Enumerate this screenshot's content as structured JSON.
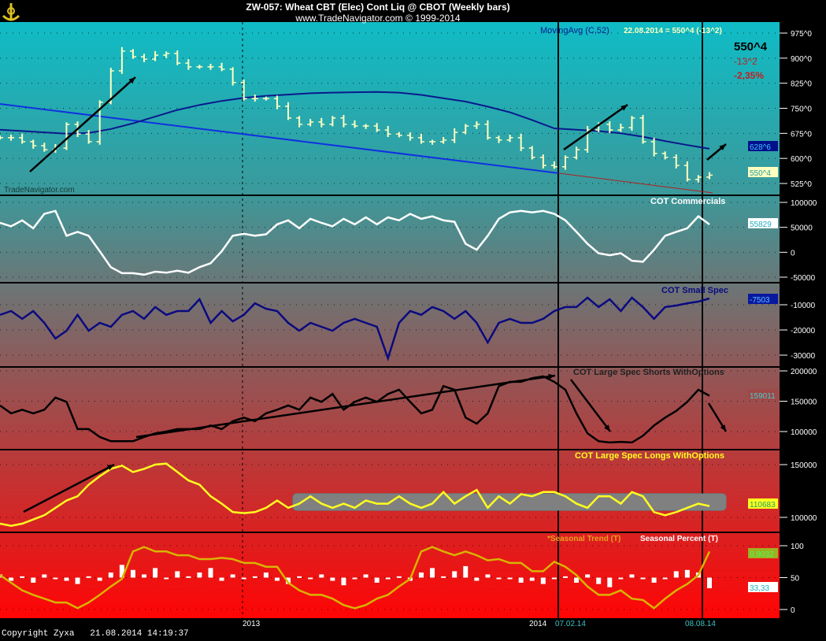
{
  "header": {
    "title": "ZW-057:  Wheat CBT (Elec) Cont Liq @ CBOT  (Weekly bars)",
    "subtitle": "www.TradeNavigator.com © 1999-2014"
  },
  "footer": {
    "copyright": "Copyright Zyxa",
    "timestamp": "21.08.2014 14:19:37"
  },
  "colors": {
    "ma": "#0a1a8c",
    "trend": "#1030e0",
    "red_line": "#b02020",
    "commercials": "#ffffff",
    "small_spec": "#0a0a80",
    "shorts": "#000000",
    "longs": "#ffff20",
    "seasonal_trend": "#d8b400",
    "seasonal_pct": "#ffffff",
    "price_bars": "#ffffc0"
  },
  "chart_data": [
    {
      "type": "bar",
      "subtype": "ohlc",
      "label": "MovingAvg (C,52)",
      "info": "22.08.2014 = 550^4 (-13^2)",
      "watermark": "TradeNavigator.com",
      "last_price": "550^4",
      "change": "-13^2",
      "change_pct": "-2,35%",
      "ma_value_label": "628^6",
      "price_value_label": "550^4",
      "y_ticks": [
        "975^0",
        "900^0",
        "825^0",
        "750^0",
        "675^0",
        "600^0",
        "525^0"
      ],
      "y_tick_values": [
        975,
        900,
        825,
        750,
        675,
        600,
        525
      ],
      "ylim": [
        490,
        1005
      ],
      "closes": [
        662,
        662,
        650,
        638,
        626,
        631,
        702,
        673,
        650,
        768,
        862,
        921,
        904,
        897,
        909,
        914,
        885,
        874,
        874,
        874,
        867,
        827,
        779,
        779,
        779,
        756,
        721,
        702,
        709,
        702,
        721,
        702,
        697,
        697,
        685,
        673,
        669,
        662,
        650,
        650,
        655,
        678,
        697,
        702,
        662,
        655,
        662,
        631,
        603,
        579,
        575,
        603,
        626,
        685,
        702,
        685,
        692,
        721,
        650,
        615,
        603,
        579,
        537,
        544,
        550
      ],
      "moving_avg_52": [
        686,
        682,
        678,
        674,
        676,
        688,
        705,
        725,
        745,
        760,
        772,
        781,
        787,
        791,
        795,
        797,
        798,
        799,
        797,
        790,
        780,
        770,
        755,
        738,
        715,
        690,
        686,
        682,
        675,
        665,
        652,
        640,
        629
      ],
      "trendline": [
        763,
        556
      ],
      "trendline_extension": [
        556,
        497
      ]
    },
    {
      "type": "line",
      "label": "COT Commercials",
      "value_label": "55829",
      "y_ticks": [
        "100000",
        "50000",
        "0",
        "-50000"
      ],
      "y_tick_values": [
        100000,
        50000,
        0,
        -50000
      ],
      "values": [
        59000,
        52000,
        64000,
        48000,
        77000,
        83000,
        33000,
        41000,
        33000,
        2000,
        -30000,
        -42000,
        -42000,
        -45000,
        -39000,
        -41000,
        -37000,
        -41000,
        -30000,
        -22000,
        2000,
        33000,
        37000,
        33000,
        36000,
        56000,
        64000,
        48000,
        67000,
        59000,
        52000,
        67000,
        56000,
        70000,
        56000,
        70000,
        64000,
        77000,
        67000,
        72000,
        64000,
        61000,
        17000,
        5000,
        33000,
        67000,
        80000,
        83000,
        80000,
        83000,
        77000,
        64000,
        41000,
        17000,
        -2000,
        -6000,
        -2000,
        -17000,
        -19000,
        5000,
        33000,
        41000,
        48000,
        72000,
        55829
      ]
    },
    {
      "type": "line",
      "label": "COT Small Spec",
      "value_label": "-7503",
      "y_ticks": [
        "-10000",
        "-20000",
        "-30000"
      ],
      "y_tick_values": [
        -10000,
        -20000,
        -30000
      ],
      "values": [
        -14000,
        -12500,
        -15600,
        -12500,
        -17200,
        -23400,
        -20300,
        -14000,
        -20300,
        -17200,
        -18750,
        -14000,
        -12500,
        -15600,
        -10900,
        -14000,
        -12500,
        -12500,
        -7800,
        -17200,
        -12500,
        -16600,
        -14000,
        -9400,
        -11600,
        -12500,
        -17200,
        -20300,
        -17200,
        -18750,
        -20300,
        -17200,
        -15600,
        -17200,
        -18750,
        -31250,
        -17200,
        -12500,
        -14000,
        -10900,
        -12500,
        -15600,
        -12500,
        -17200,
        -25000,
        -17200,
        -15600,
        -17200,
        -17200,
        -15600,
        -12500,
        -10900,
        -10900,
        -7200,
        -10900,
        -7800,
        -12500,
        -7200,
        -10900,
        -15600,
        -10900,
        -10300,
        -9400,
        -8750,
        -7503
      ]
    },
    {
      "type": "line",
      "label": "COT Large Spec Shorts WithOptions",
      "value_label": "159011",
      "y_ticks": [
        "200000",
        "150000",
        "100000"
      ],
      "y_tick_values": [
        200000,
        150000,
        100000
      ],
      "values": [
        143000,
        130000,
        136000,
        130000,
        136000,
        156000,
        149000,
        104000,
        104000,
        91000,
        84000,
        84000,
        84000,
        91000,
        97000,
        100000,
        104000,
        104000,
        104000,
        110000,
        104000,
        117000,
        123000,
        117000,
        130000,
        136000,
        143000,
        136000,
        156000,
        149000,
        162000,
        136000,
        149000,
        156000,
        149000,
        162000,
        169000,
        149000,
        130000,
        136000,
        175000,
        169000,
        123000,
        113000,
        130000,
        175000,
        182000,
        182000,
        188000,
        191000,
        182000,
        169000,
        130000,
        97000,
        84000,
        82000,
        83000,
        82000,
        93000,
        110000,
        123000,
        134000,
        149000,
        169000,
        159011
      ]
    },
    {
      "type": "line",
      "label": "COT Large Spec Longs WithOptions",
      "value_label": "110683",
      "y_ticks": [
        "150000",
        "100000"
      ],
      "y_tick_values": [
        150000,
        100000
      ],
      "values": [
        94000,
        92000,
        94000,
        98000,
        102000,
        109000,
        116000,
        120000,
        131000,
        139000,
        146000,
        149000,
        143000,
        146000,
        150000,
        151000,
        143000,
        135000,
        131000,
        120000,
        113000,
        105000,
        104000,
        105000,
        109000,
        116000,
        109000,
        113000,
        120000,
        113000,
        109000,
        113000,
        109000,
        116000,
        113000,
        113000,
        120000,
        113000,
        109000,
        113000,
        124000,
        113000,
        120000,
        126000,
        109000,
        120000,
        113000,
        122000,
        120000,
        124000,
        124000,
        120000,
        113000,
        109000,
        120000,
        120000,
        113000,
        124000,
        120000,
        105000,
        102000,
        105000,
        109000,
        113000,
        110683
      ]
    },
    {
      "type": "bar+line",
      "label_trend": "*Seasonal Trend (T)",
      "label_pct": "Seasonal Percent (T)",
      "trend_value_label": "0,9032",
      "pct_value_label": "33,33",
      "y_ticks": [
        "100",
        "50",
        "0"
      ],
      "y_tick_values": [
        100,
        50,
        0
      ],
      "seasonal_trend": [
        54,
        42,
        30,
        23,
        17,
        11,
        11,
        2,
        11,
        23,
        36,
        48,
        91,
        98,
        91,
        91,
        85,
        85,
        79,
        79,
        81,
        79,
        73,
        73,
        67,
        67,
        42,
        30,
        23,
        23,
        17,
        7,
        2,
        7,
        17,
        23,
        36,
        48,
        91,
        98,
        91,
        85,
        91,
        85,
        77,
        79,
        73,
        73,
        60,
        60,
        75,
        67,
        54,
        36,
        23,
        23,
        30,
        17,
        15,
        2,
        17,
        30,
        40,
        54,
        91
      ],
      "seasonal_percent": [
        55,
        45,
        52,
        42,
        55,
        48,
        45,
        40,
        52,
        45,
        58,
        70,
        62,
        55,
        65,
        48,
        60,
        52,
        58,
        65,
        45,
        55,
        48,
        52,
        58,
        45,
        40,
        52,
        48,
        55,
        45,
        38,
        50,
        55,
        42,
        48,
        52,
        45,
        58,
        65,
        52,
        60,
        68,
        45,
        55,
        50,
        48,
        42,
        45,
        40,
        48,
        52,
        42,
        55,
        40,
        35,
        48,
        55,
        50,
        42,
        48,
        60,
        62,
        58,
        33.33
      ]
    },
    {
      "x_tick_labels": [
        "2013",
        "2014",
        "07.02.14",
        "08.08.14"
      ]
    }
  ]
}
